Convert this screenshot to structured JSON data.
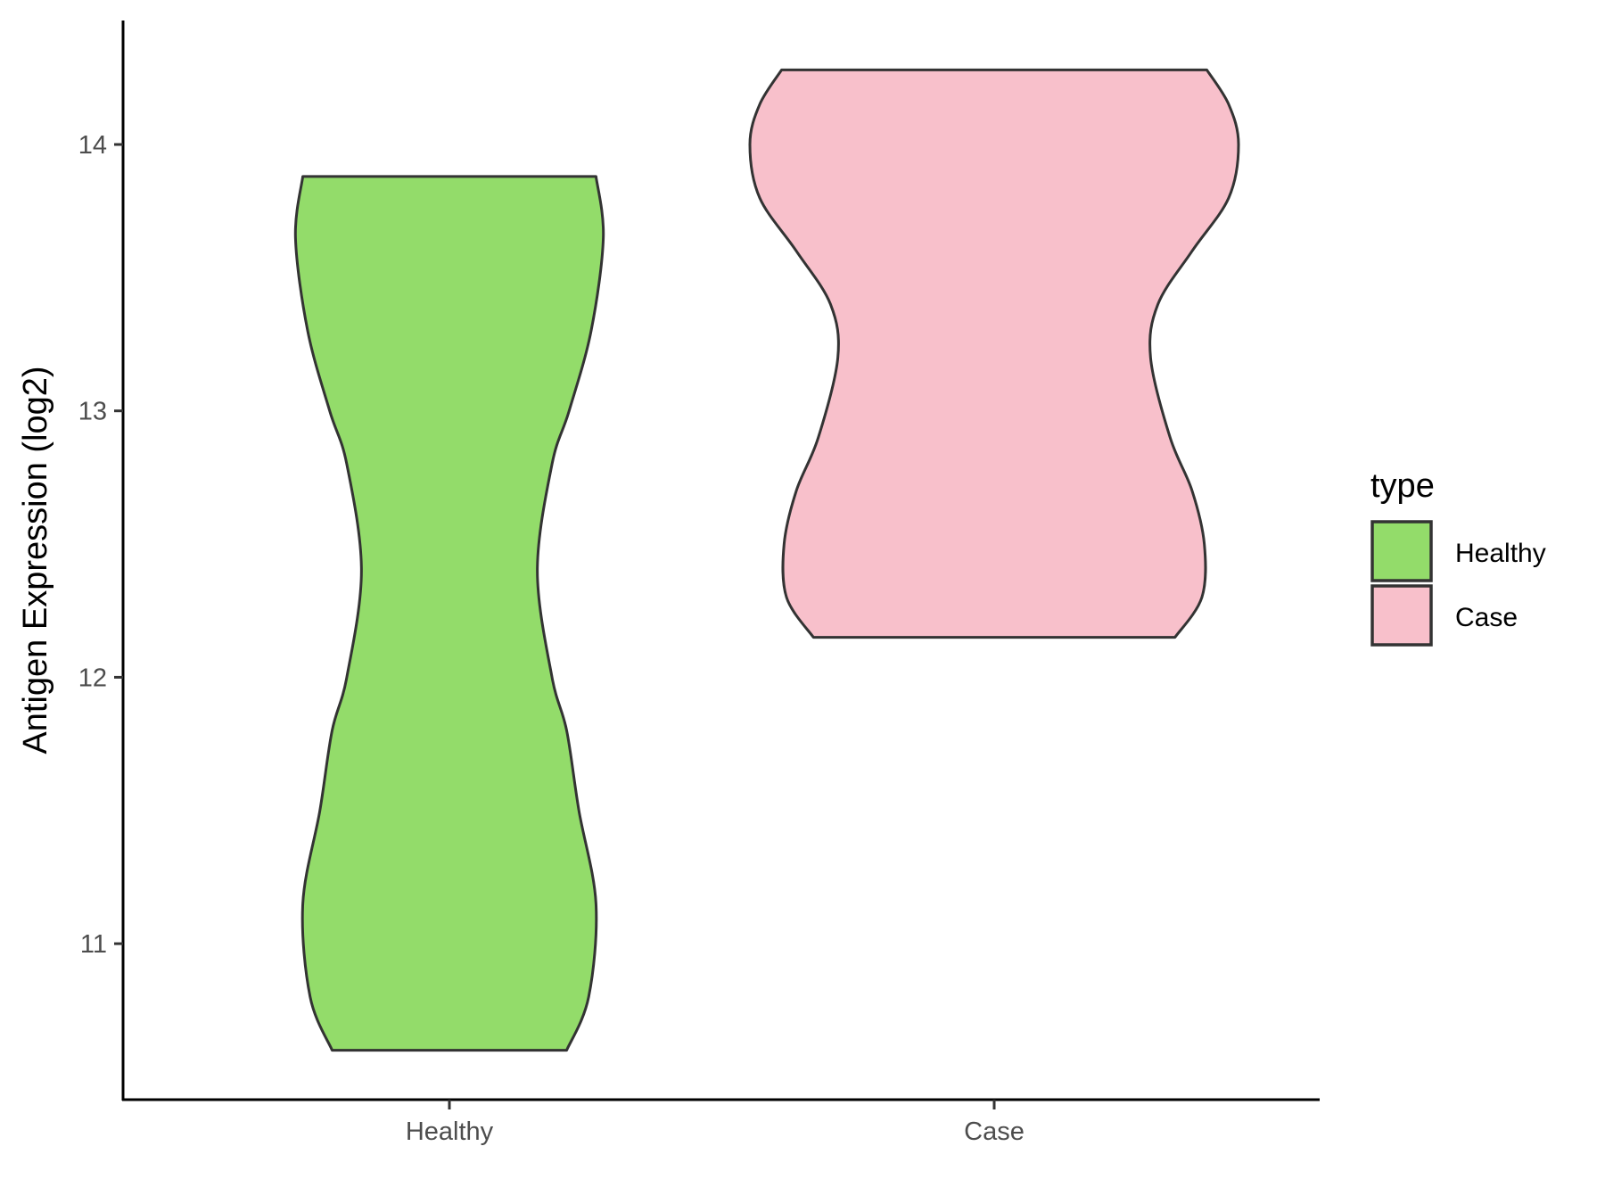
{
  "chart_data": {
    "type": "violin",
    "title": "",
    "xlabel": "",
    "ylabel": "Antigen Expression (log2)",
    "ylim": [
      10.41,
      14.47
    ],
    "yticks": [
      11,
      12,
      13,
      14
    ],
    "categories": [
      "Healthy",
      "Case"
    ],
    "grid": false,
    "legend": {
      "title": "type",
      "position": "right",
      "entries": [
        "Healthy",
        "Case"
      ]
    },
    "series": [
      {
        "name": "Healthy",
        "color": "#93DC6A",
        "range": [
          10.6,
          13.88
        ],
        "density_profile": [
          [
            10.6,
            0.48
          ],
          [
            10.8,
            0.57
          ],
          [
            11.15,
            0.6
          ],
          [
            11.5,
            0.53
          ],
          [
            11.8,
            0.48
          ],
          [
            12.0,
            0.42
          ],
          [
            12.4,
            0.36
          ],
          [
            12.8,
            0.42
          ],
          [
            13.0,
            0.49
          ],
          [
            13.3,
            0.58
          ],
          [
            13.65,
            0.63
          ],
          [
            13.88,
            0.6
          ]
        ]
      },
      {
        "name": "Case",
        "color": "#F8C0CB",
        "range": [
          12.15,
          14.28
        ],
        "density_profile": [
          [
            12.15,
            0.74
          ],
          [
            12.3,
            0.85
          ],
          [
            12.5,
            0.86
          ],
          [
            12.7,
            0.81
          ],
          [
            12.9,
            0.72
          ],
          [
            13.2,
            0.64
          ],
          [
            13.4,
            0.67
          ],
          [
            13.6,
            0.81
          ],
          [
            13.8,
            0.96
          ],
          [
            14.0,
            1.0
          ],
          [
            14.15,
            0.96
          ],
          [
            14.28,
            0.87
          ]
        ]
      }
    ]
  }
}
